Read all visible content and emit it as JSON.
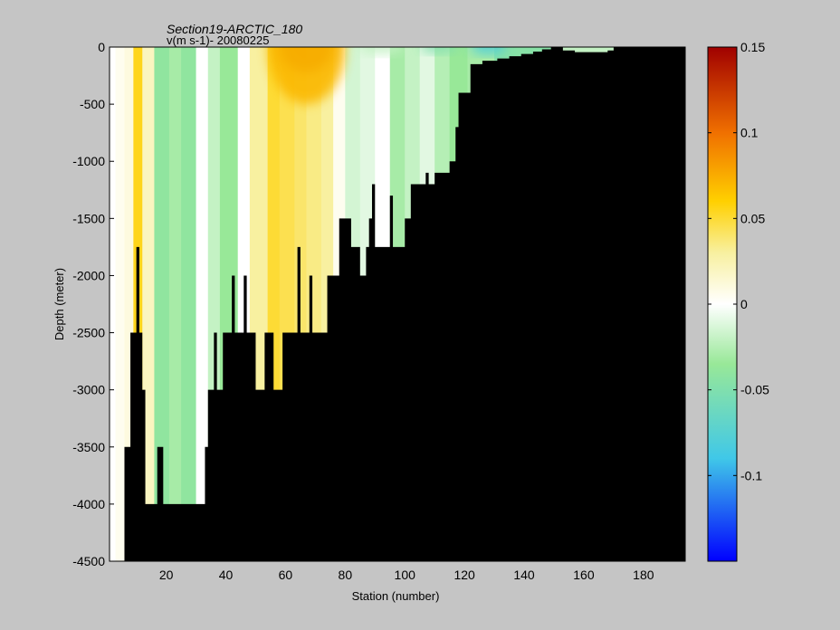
{
  "chart_data": {
    "type": "heatmap",
    "title": "Section19-ARCTIC_180",
    "subtitle": "v(m s-1)- 20080225",
    "xlabel": "Station (number)",
    "ylabel": "Depth (meter)",
    "xlim": [
      1,
      194
    ],
    "ylim": [
      -4500,
      0
    ],
    "x_ticks": [
      20,
      40,
      60,
      80,
      100,
      120,
      140,
      160,
      180
    ],
    "y_ticks": [
      0,
      -500,
      -1000,
      -1500,
      -2000,
      -2500,
      -3000,
      -3500,
      -4000,
      -4500
    ],
    "colorbar": {
      "range": [
        -0.15,
        0.15
      ],
      "ticks": [
        0.15,
        0.1,
        0.05,
        0,
        -0.05,
        -0.1
      ],
      "colormap": "jet-white-center",
      "colors": {
        "negative_strong": "#0000ff",
        "negative_mid": "#40c8e8",
        "negative_weak": "#98e898",
        "zero": "#ffffff",
        "positive_weak": "#f8f0a0",
        "positive_mid": "#ffd000",
        "positive_strong": "#a00000"
      }
    },
    "bottom_depth": [
      [
        1,
        -4500
      ],
      [
        6,
        -4500
      ],
      [
        6,
        -3500
      ],
      [
        8,
        -3500
      ],
      [
        8,
        -2500
      ],
      [
        10,
        -2500
      ],
      [
        10,
        -1750
      ],
      [
        11,
        -1750
      ],
      [
        11,
        -2500
      ],
      [
        12,
        -2500
      ],
      [
        12,
        -3000
      ],
      [
        13,
        -3000
      ],
      [
        13,
        -4000
      ],
      [
        17,
        -4000
      ],
      [
        17,
        -3500
      ],
      [
        19,
        -3500
      ],
      [
        19,
        -4000
      ],
      [
        33,
        -4000
      ],
      [
        33,
        -3500
      ],
      [
        34,
        -3500
      ],
      [
        34,
        -3000
      ],
      [
        36,
        -3000
      ],
      [
        36,
        -2500
      ],
      [
        37,
        -2500
      ],
      [
        37,
        -3000
      ],
      [
        39,
        -3000
      ],
      [
        39,
        -2500
      ],
      [
        42,
        -2500
      ],
      [
        42,
        -2000
      ],
      [
        43,
        -2000
      ],
      [
        43,
        -2500
      ],
      [
        46,
        -2500
      ],
      [
        46,
        -2000
      ],
      [
        47,
        -2000
      ],
      [
        47,
        -2500
      ],
      [
        50,
        -2500
      ],
      [
        50,
        -3000
      ],
      [
        53,
        -3000
      ],
      [
        53,
        -2500
      ],
      [
        56,
        -2500
      ],
      [
        56,
        -3000
      ],
      [
        59,
        -3000
      ],
      [
        59,
        -2500
      ],
      [
        64,
        -2500
      ],
      [
        64,
        -1750
      ],
      [
        65,
        -1750
      ],
      [
        65,
        -2500
      ],
      [
        68,
        -2500
      ],
      [
        68,
        -2000
      ],
      [
        69,
        -2000
      ],
      [
        69,
        -2500
      ],
      [
        74,
        -2500
      ],
      [
        74,
        -2000
      ],
      [
        78,
        -2000
      ],
      [
        78,
        -1500
      ],
      [
        82,
        -1500
      ],
      [
        82,
        -1750
      ],
      [
        85,
        -1750
      ],
      [
        85,
        -2000
      ],
      [
        87,
        -2000
      ],
      [
        87,
        -1750
      ],
      [
        88,
        -1750
      ],
      [
        88,
        -1500
      ],
      [
        89,
        -1500
      ],
      [
        89,
        -1200
      ],
      [
        90,
        -1200
      ],
      [
        90,
        -1750
      ],
      [
        95,
        -1750
      ],
      [
        95,
        -1300
      ],
      [
        96,
        -1300
      ],
      [
        96,
        -1750
      ],
      [
        100,
        -1750
      ],
      [
        100,
        -1500
      ],
      [
        102,
        -1500
      ],
      [
        102,
        -1200
      ],
      [
        107,
        -1200
      ],
      [
        107,
        -1100
      ],
      [
        108,
        -1100
      ],
      [
        108,
        -1200
      ],
      [
        110,
        -1200
      ],
      [
        110,
        -1100
      ],
      [
        115,
        -1100
      ],
      [
        115,
        -1000
      ],
      [
        117,
        -1000
      ],
      [
        117,
        -700
      ],
      [
        118,
        -700
      ],
      [
        118,
        -400
      ],
      [
        122,
        -400
      ],
      [
        122,
        -150
      ],
      [
        126,
        -150
      ],
      [
        126,
        -120
      ],
      [
        131,
        -120
      ],
      [
        131,
        -100
      ],
      [
        135,
        -100
      ],
      [
        135,
        -80
      ],
      [
        139,
        -80
      ],
      [
        139,
        -60
      ],
      [
        143,
        -60
      ],
      [
        143,
        -40
      ],
      [
        146,
        -40
      ],
      [
        146,
        -20
      ],
      [
        149,
        -20
      ],
      [
        149,
        0
      ],
      [
        153,
        0
      ],
      [
        153,
        -30
      ],
      [
        157,
        -30
      ],
      [
        157,
        -45
      ],
      [
        168,
        -45
      ],
      [
        168,
        -30
      ],
      [
        170,
        -30
      ],
      [
        170,
        0
      ],
      [
        194,
        0
      ]
    ],
    "value_columns": [
      [
        1,
        0.0
      ],
      [
        3,
        0.005
      ],
      [
        6,
        0.01
      ],
      [
        9,
        0.055
      ],
      [
        12,
        0.02
      ],
      [
        16,
        -0.04
      ],
      [
        21,
        -0.03
      ],
      [
        25,
        -0.04
      ],
      [
        30,
        0.0
      ],
      [
        34,
        -0.02
      ],
      [
        38,
        -0.035
      ],
      [
        44,
        0.0
      ],
      [
        48,
        0.03
      ],
      [
        54,
        0.05
      ],
      [
        58,
        0.045
      ],
      [
        63,
        0.04
      ],
      [
        67,
        0.035
      ],
      [
        72,
        0.03
      ],
      [
        76,
        0.005
      ],
      [
        80,
        -0.015
      ],
      [
        85,
        -0.01
      ],
      [
        90,
        0.0
      ],
      [
        95,
        -0.03
      ],
      [
        100,
        -0.02
      ],
      [
        105,
        -0.01
      ],
      [
        110,
        -0.025
      ],
      [
        115,
        -0.035
      ],
      [
        121,
        -0.03
      ],
      [
        130,
        -0.045
      ],
      [
        150,
        -0.02
      ],
      [
        170,
        -0.02
      ],
      [
        194,
        0.0
      ]
    ],
    "surface_features": [
      {
        "x": [
          58,
          76
        ],
        "depth": [
          0,
          -220
        ],
        "value": 0.12
      },
      {
        "x": [
          54,
          80
        ],
        "depth": [
          0,
          -500
        ],
        "value": 0.07
      },
      {
        "x": [
          84,
          100
        ],
        "depth": [
          0,
          -60
        ],
        "value": -0.02
      },
      {
        "x": [
          105,
          118
        ],
        "depth": [
          0,
          -50
        ],
        "value": -0.05
      },
      {
        "x": [
          122,
          134
        ],
        "depth": [
          0,
          -60
        ],
        "value": -0.08
      }
    ]
  }
}
